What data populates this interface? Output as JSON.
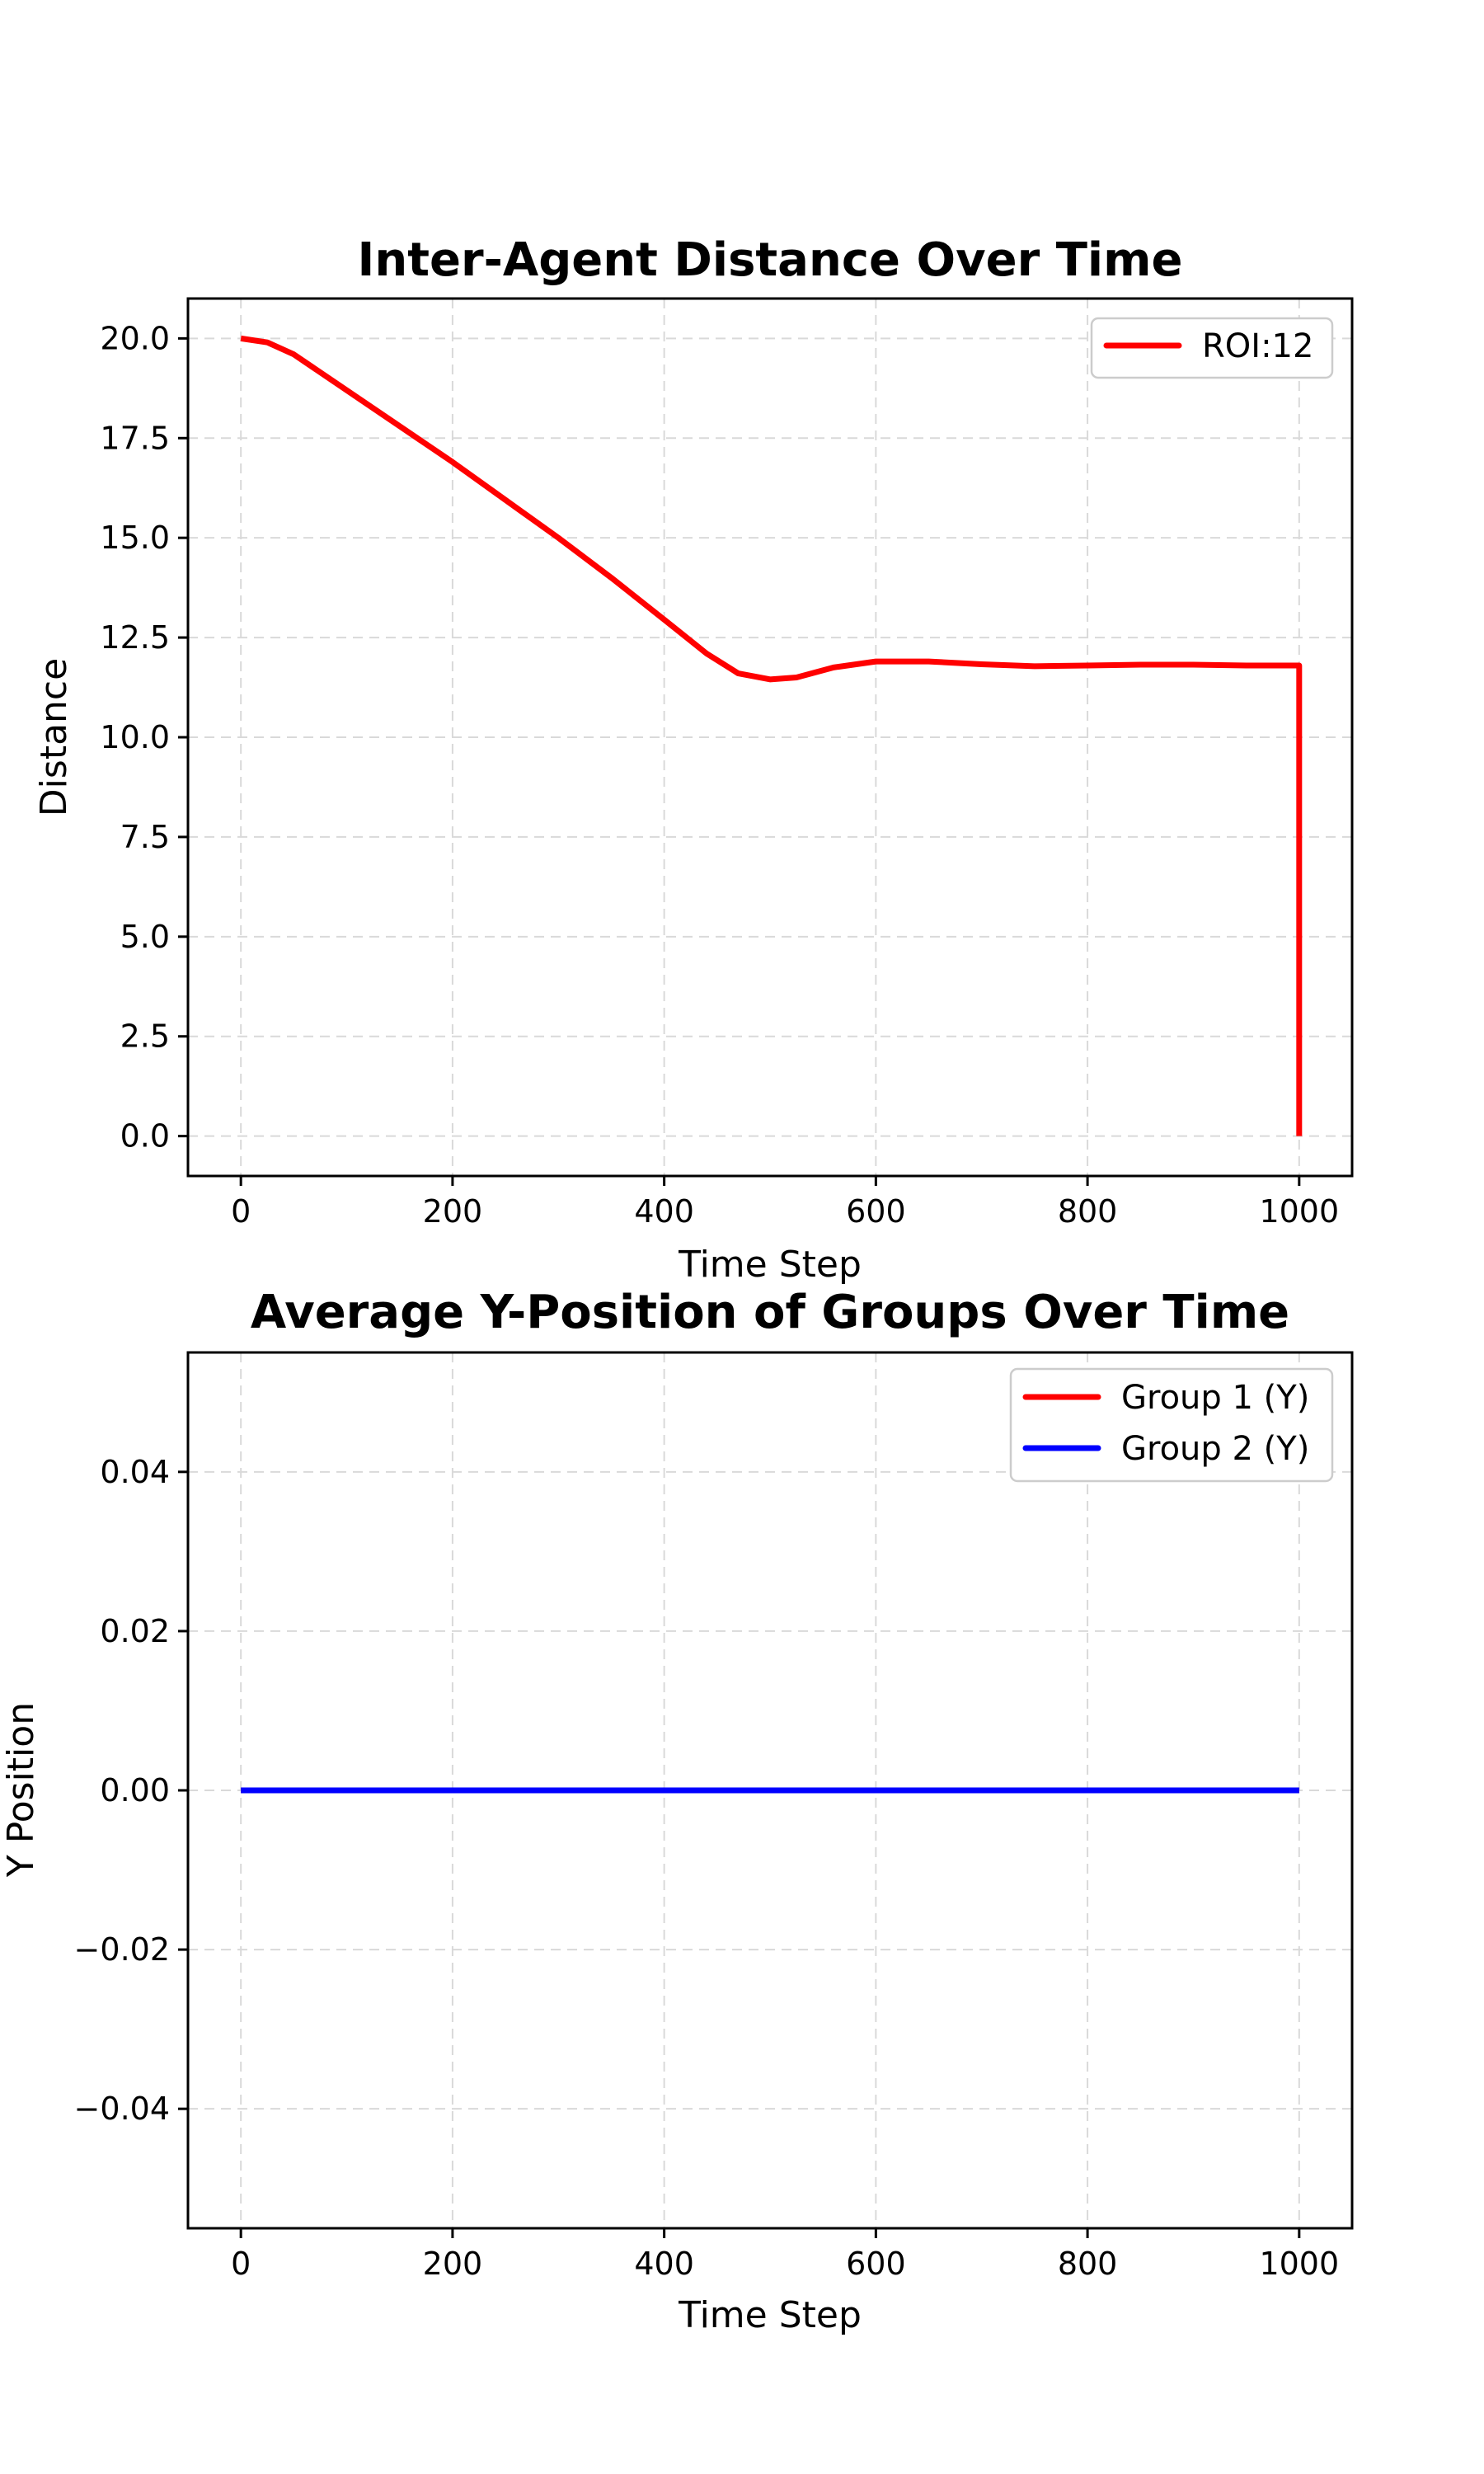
{
  "chart_data": [
    {
      "type": "line",
      "title": "Inter-Agent Distance Over Time",
      "xlabel": "Time Step",
      "ylabel": "Distance",
      "xlim": [
        -50,
        1050
      ],
      "ylim": [
        -1,
        21
      ],
      "xticks": [
        0,
        200,
        400,
        600,
        800,
        1000
      ],
      "xtick_labels": [
        "0",
        "200",
        "400",
        "600",
        "800",
        "1000"
      ],
      "yticks": [
        0,
        2.5,
        5,
        7.5,
        10,
        12.5,
        15,
        17.5,
        20
      ],
      "ytick_labels": [
        "0.0",
        "2.5",
        "5.0",
        "7.5",
        "10.0",
        "12.5",
        "15.0",
        "17.5",
        "20.0"
      ],
      "grid": true,
      "legend": "upper right",
      "series": [
        {
          "name": "ROI:12",
          "color": "#ff0000",
          "x": [
            0,
            25,
            50,
            75,
            100,
            150,
            200,
            250,
            300,
            350,
            400,
            440,
            470,
            500,
            525,
            560,
            600,
            650,
            700,
            750,
            800,
            850,
            900,
            950,
            1000,
            1000
          ],
          "y": [
            20.0,
            19.9,
            19.6,
            19.15,
            18.7,
            17.8,
            16.9,
            15.95,
            15.0,
            14.0,
            12.95,
            12.1,
            11.6,
            11.45,
            11.5,
            11.75,
            11.9,
            11.9,
            11.83,
            11.78,
            11.8,
            11.82,
            11.82,
            11.8,
            11.8,
            0.0
          ]
        }
      ]
    },
    {
      "type": "line",
      "title": "Average Y-Position of Groups Over Time",
      "xlabel": "Time Step",
      "ylabel": "Y Position",
      "xlim": [
        -50,
        1050
      ],
      "ylim": [
        -0.055,
        0.055
      ],
      "xticks": [
        0,
        200,
        400,
        600,
        800,
        1000
      ],
      "xtick_labels": [
        "0",
        "200",
        "400",
        "600",
        "800",
        "1000"
      ],
      "yticks": [
        -0.04,
        -0.02,
        0,
        0.02,
        0.04
      ],
      "ytick_labels": [
        "−0.04",
        "−0.02",
        "0.00",
        "0.02",
        "0.04"
      ],
      "grid": true,
      "legend": "upper right",
      "series": [
        {
          "name": "Group 1 (Y)",
          "color": "#ff0000",
          "x": [
            0,
            1000
          ],
          "y": [
            0,
            0
          ]
        },
        {
          "name": "Group 2 (Y)",
          "color": "#0000ff",
          "x": [
            0,
            1000
          ],
          "y": [
            0,
            0
          ]
        }
      ]
    }
  ]
}
